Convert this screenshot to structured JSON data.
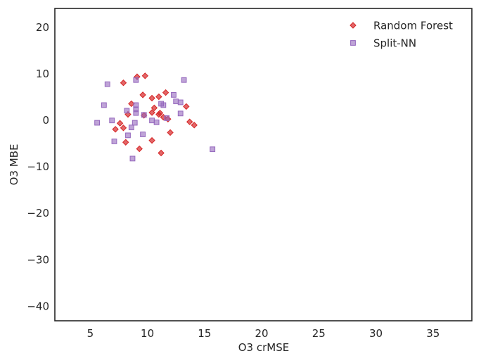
{
  "chart_data": {
    "type": "scatter",
    "title": "",
    "xlabel": "O3 crMSE",
    "ylabel": "O3 MBE",
    "xlim": [
      1.9,
      38.4
    ],
    "ylim": [
      -43.2,
      24.0
    ],
    "xticks": [
      5,
      10,
      15,
      20,
      25,
      30,
      35
    ],
    "yticks": [
      20,
      10,
      0,
      -10,
      -20,
      -30,
      -40
    ],
    "grid": false,
    "legend_position": "top-right",
    "series": [
      {
        "name": "Random Forest",
        "marker": "diamond",
        "color": "#d62728",
        "points": [
          [
            7.9,
            8.0
          ],
          [
            9.1,
            9.3
          ],
          [
            9.8,
            9.5
          ],
          [
            9.6,
            5.4
          ],
          [
            10.4,
            4.7
          ],
          [
            11.0,
            5.0
          ],
          [
            11.6,
            5.9
          ],
          [
            8.6,
            3.5
          ],
          [
            8.3,
            1.2
          ],
          [
            9.7,
            1.0
          ],
          [
            10.6,
            2.6
          ],
          [
            10.4,
            1.6
          ],
          [
            11.0,
            1.2
          ],
          [
            11.1,
            1.5
          ],
          [
            11.4,
            0.6
          ],
          [
            11.8,
            0.2
          ],
          [
            13.4,
            2.9
          ],
          [
            13.7,
            -0.4
          ],
          [
            14.1,
            -1.1
          ],
          [
            7.6,
            -0.7
          ],
          [
            7.9,
            -1.7
          ],
          [
            7.2,
            -2.0
          ],
          [
            12.0,
            -2.7
          ],
          [
            8.1,
            -4.8
          ],
          [
            10.4,
            -4.4
          ],
          [
            9.3,
            -6.2
          ],
          [
            11.2,
            -7.1
          ]
        ]
      },
      {
        "name": "Split-NN",
        "marker": "square",
        "color": "#9467bd",
        "points": [
          [
            6.5,
            7.7
          ],
          [
            9.0,
            8.6
          ],
          [
            13.2,
            8.6
          ],
          [
            12.3,
            5.4
          ],
          [
            12.5,
            4.0
          ],
          [
            12.9,
            3.8
          ],
          [
            11.2,
            3.5
          ],
          [
            11.4,
            3.2
          ],
          [
            9.0,
            3.2
          ],
          [
            6.2,
            3.2
          ],
          [
            9.0,
            2.3
          ],
          [
            8.2,
            2.0
          ],
          [
            9.0,
            1.5
          ],
          [
            9.7,
            1.1
          ],
          [
            12.9,
            1.4
          ],
          [
            11.7,
            0.4
          ],
          [
            10.4,
            -0.1
          ],
          [
            10.8,
            -0.5
          ],
          [
            6.9,
            -0.1
          ],
          [
            5.6,
            -0.6
          ],
          [
            8.9,
            -0.6
          ],
          [
            8.6,
            -1.6
          ],
          [
            9.6,
            -3.1
          ],
          [
            8.3,
            -3.3
          ],
          [
            7.1,
            -4.6
          ],
          [
            15.7,
            -6.3
          ],
          [
            8.7,
            -8.3
          ]
        ]
      }
    ]
  }
}
